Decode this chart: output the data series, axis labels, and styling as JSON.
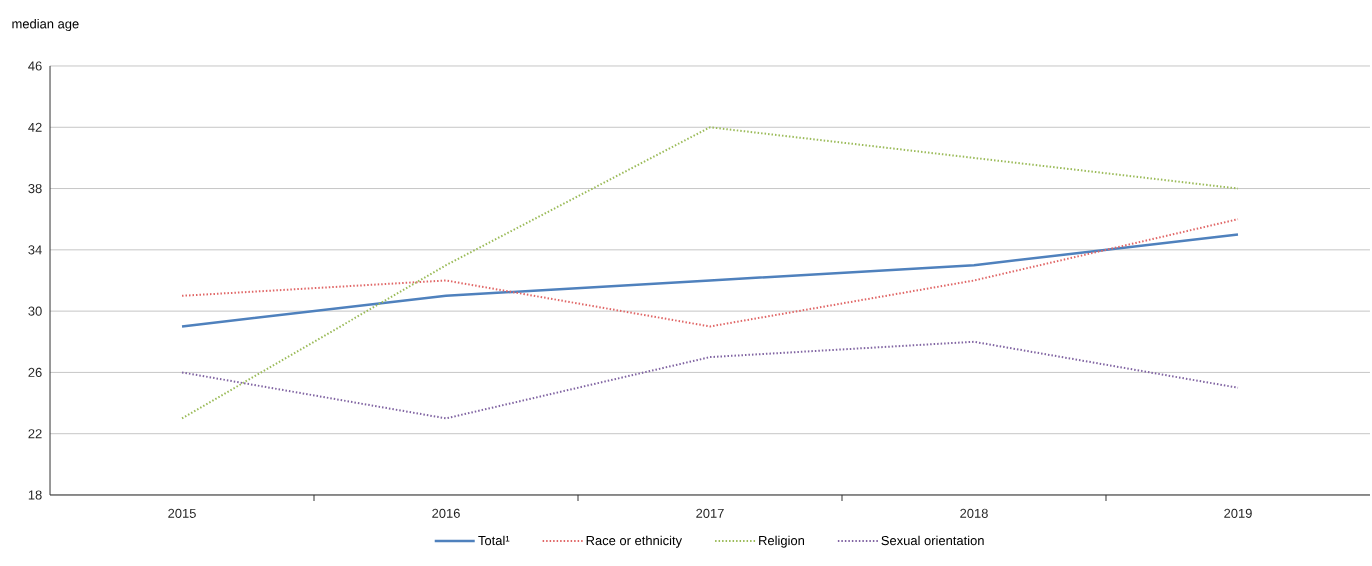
{
  "chart_data": {
    "type": "line",
    "ylabel": "median age",
    "categories": [
      "2015",
      "2016",
      "2017",
      "2018",
      "2019"
    ],
    "series": [
      {
        "name": "Total¹",
        "color": "#4f81bd",
        "line_style": "solid",
        "values": [
          29,
          31,
          32,
          33,
          35
        ]
      },
      {
        "name": "Race or ethnicity",
        "color": "#e06666",
        "line_style": "dotted",
        "values": [
          31,
          32,
          29,
          32,
          36
        ]
      },
      {
        "name": "Religion",
        "color": "#9bbb59",
        "line_style": "dotted",
        "values": [
          23,
          33,
          42,
          40,
          38
        ]
      },
      {
        "name": "Sexual orientation",
        "color": "#8064a2",
        "line_style": "dotted",
        "values": [
          26,
          23,
          27,
          28,
          25
        ]
      }
    ],
    "ylim": [
      18,
      46
    ],
    "yticks": [
      18,
      22,
      26,
      30,
      34,
      38,
      42,
      46
    ],
    "grid": "y",
    "legend": "bottom",
    "marker": "none"
  }
}
